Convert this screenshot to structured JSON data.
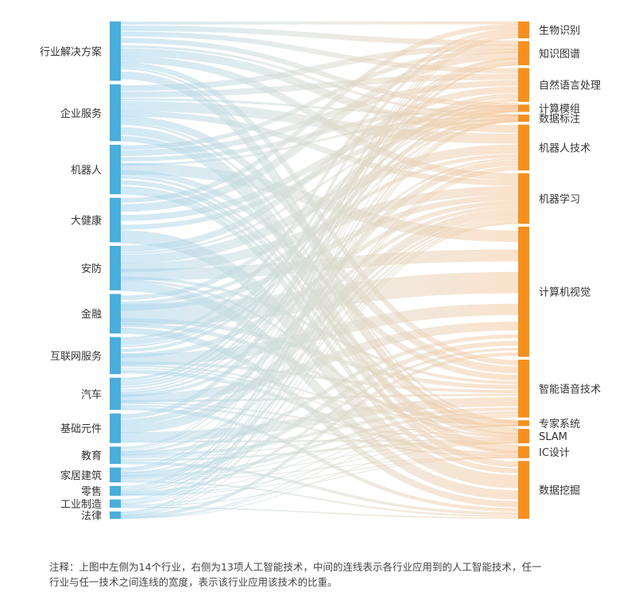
{
  "diagram": {
    "type": "sankey",
    "left_color": "#4aaedc",
    "right_color": "#f5901e",
    "industries": [
      {
        "name": "行业解决方案",
        "share": 0.12
      },
      {
        "name": "企业服务",
        "share": 0.115
      },
      {
        "name": "机器人",
        "share": 0.1
      },
      {
        "name": "大健康",
        "share": 0.09
      },
      {
        "name": "安防",
        "share": 0.09
      },
      {
        "name": "金融",
        "share": 0.08
      },
      {
        "name": "互联网服务",
        "share": 0.075
      },
      {
        "name": "汽车",
        "share": 0.065
      },
      {
        "name": "基础元件",
        "share": 0.06
      },
      {
        "name": "教育",
        "share": 0.035
      },
      {
        "name": "家居建筑",
        "share": 0.03
      },
      {
        "name": "零售",
        "share": 0.02
      },
      {
        "name": "工业制造",
        "share": 0.017
      },
      {
        "name": "法律",
        "share": 0.015
      }
    ],
    "technologies": [
      {
        "name": "生物识别",
        "share": 0.035
      },
      {
        "name": "知识图谱",
        "share": 0.05
      },
      {
        "name": "自然语言处理",
        "share": 0.07
      },
      {
        "name": "计算模组",
        "share": 0.015
      },
      {
        "name": "数据标注",
        "share": 0.015
      },
      {
        "name": "机器人技术",
        "share": 0.095
      },
      {
        "name": "机器学习",
        "share": 0.105
      },
      {
        "name": "计算机视觉",
        "share": 0.27
      },
      {
        "name": "智能语音技术",
        "share": 0.12
      },
      {
        "name": "专家系统",
        "share": 0.012
      },
      {
        "name": "SLAM",
        "share": 0.03
      },
      {
        "name": "IC设计",
        "share": 0.025
      },
      {
        "name": "数据挖掘",
        "share": 0.12
      }
    ]
  },
  "note": {
    "line1": "注释：上图中左侧为14个行业，右侧为13项人工智能技术，中间的连线表示各行业应用到的人工智能技术，任一",
    "line2": "行业与任一技术之间连线的宽度，表示该行业应用该技术的比重。"
  }
}
